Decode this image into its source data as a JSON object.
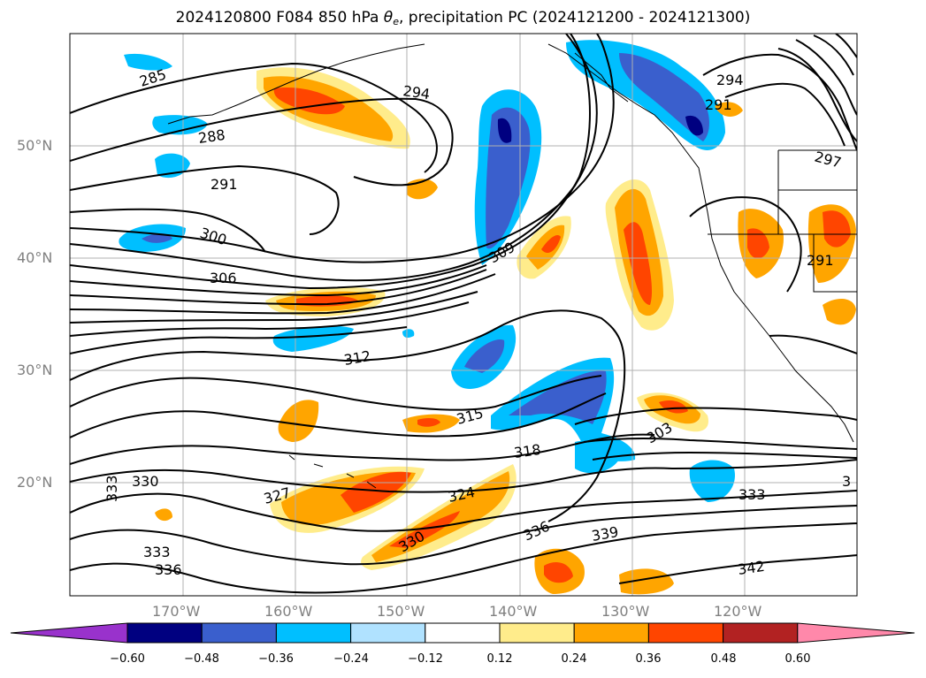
{
  "title": {
    "prefix": "2024120800 F084 850 hPa ",
    "theta": "θ",
    "theta_sub": "e",
    "suffix": ", precipitation PC (2024121200 - 2024121300)"
  },
  "map": {
    "latitude_labels": [
      "50°N",
      "40°N",
      "30°N",
      "20°N"
    ],
    "longitude_labels": [
      "170°W",
      "160°W",
      "150°W",
      "140°W",
      "130°W",
      "120°W"
    ],
    "contour_labels": [
      "285",
      "294",
      "294",
      "291",
      "288",
      "291",
      "300",
      "306",
      "309",
      "312",
      "315",
      "318",
      "303",
      "324",
      "327",
      "333",
      "330",
      "333",
      "333",
      "336",
      "330",
      "336",
      "339",
      "342",
      "297",
      "291",
      "3"
    ]
  },
  "colorbar": {
    "tick_labels": [
      "−0.60",
      "−0.48",
      "−0.36",
      "−0.24",
      "−0.12",
      "0.12",
      "0.24",
      "0.36",
      "0.48",
      "0.60"
    ],
    "colors": [
      "#9932CC",
      "#000080",
      "#3A5FCD",
      "#00BFFF",
      "#B0E2FF",
      "#FFFFFF",
      "#FFEC8B",
      "#FFA500",
      "#FF4500",
      "#B22222",
      "#FF88AA"
    ]
  }
}
